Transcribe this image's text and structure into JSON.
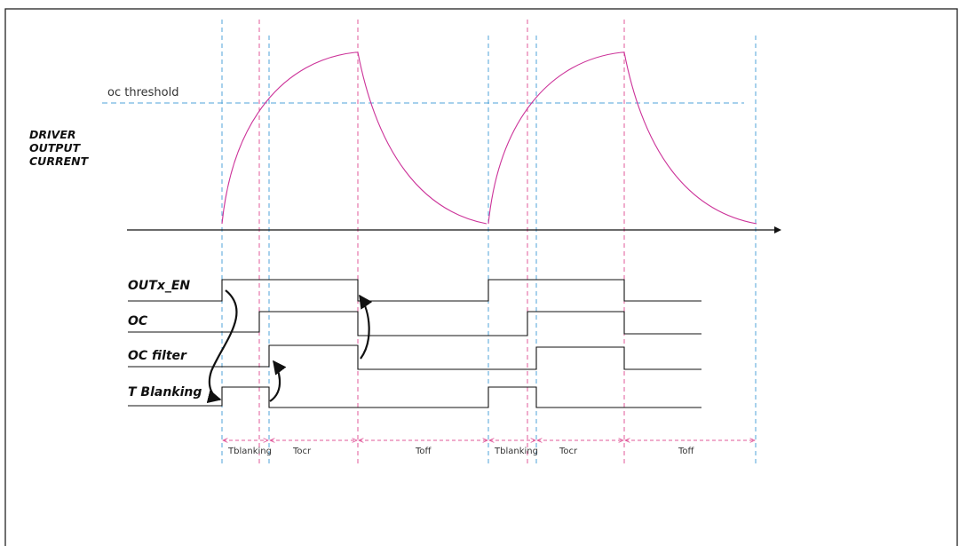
{
  "threshold_label": "oc threshold",
  "axis_label_lines": [
    "DRIVER",
    "OUTPUT",
    "CURRENT"
  ],
  "signals": [
    {
      "id": "outx-en",
      "label": "OUTx_EN"
    },
    {
      "id": "oc",
      "label": "OC"
    },
    {
      "id": "oc-filter",
      "label": "OC filter"
    },
    {
      "id": "t-blanking",
      "label": "T Blanking"
    }
  ],
  "intervals": [
    {
      "label": "Tblanking"
    },
    {
      "label": "Tocr"
    },
    {
      "label": "Toff"
    },
    {
      "label": "Tblanking"
    },
    {
      "label": "Tocr"
    },
    {
      "label": "Toff"
    }
  ],
  "colors": {
    "current_curve": "#cc3399",
    "blue_guides": "#4fa3d8",
    "pink_guides": "#e0589a",
    "signal_lines": "#111111",
    "frame_border": "#222222"
  }
}
